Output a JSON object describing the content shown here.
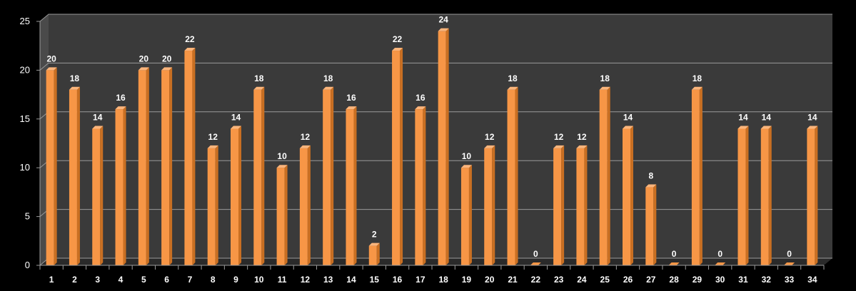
{
  "chart_data": {
    "type": "bar",
    "categories": [
      "1",
      "2",
      "3",
      "4",
      "5",
      "6",
      "7",
      "8",
      "9",
      "10",
      "11",
      "12",
      "13",
      "14",
      "15",
      "16",
      "17",
      "18",
      "19",
      "20",
      "21",
      "22",
      "23",
      "24",
      "25",
      "26",
      "27",
      "28",
      "29",
      "30",
      "31",
      "32",
      "33",
      "34"
    ],
    "values": [
      20,
      18,
      14,
      16,
      20,
      20,
      22,
      12,
      14,
      18,
      10,
      12,
      18,
      16,
      2,
      22,
      16,
      24,
      10,
      12,
      18,
      0,
      12,
      12,
      18,
      14,
      8,
      0,
      18,
      0,
      14,
      14,
      0,
      14
    ],
    "ylim": [
      0,
      25
    ],
    "yticks": [
      "0",
      "5",
      "10",
      "15",
      "20",
      "25"
    ],
    "title": "",
    "xlabel": "",
    "ylabel": "",
    "grid": true,
    "legend": "none",
    "colors": {
      "background": "#000000",
      "plot_back_wall": "#3a3a3a",
      "plot_floor": "#2a2a2a",
      "gridline": "#9a9a9a",
      "bar_front": "#f79646",
      "bar_side": "#c96f22",
      "bar_top": "#fbb57c",
      "text": "#ffffff"
    }
  }
}
